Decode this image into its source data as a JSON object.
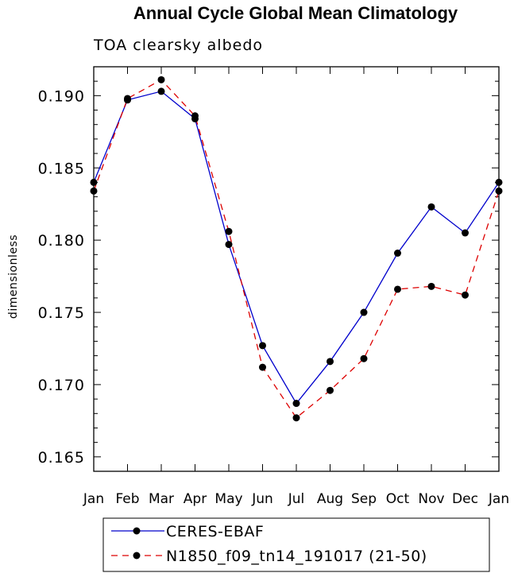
{
  "chart_data": {
    "type": "line",
    "title": "Annual Cycle Global Mean Climatology",
    "subtitle": "TOA clearsky albedo",
    "xlabel": "",
    "ylabel": "dimensionless",
    "categories": [
      "Jan",
      "Feb",
      "Mar",
      "Apr",
      "May",
      "Jun",
      "Jul",
      "Aug",
      "Sep",
      "Oct",
      "Nov",
      "Dec",
      "Jan"
    ],
    "ylim": [
      0.164,
      0.192
    ],
    "yticks": [
      "0.165",
      "0.170",
      "0.175",
      "0.180",
      "0.185",
      "0.190"
    ],
    "ytick_values": [
      0.165,
      0.17,
      0.175,
      0.18,
      0.185,
      0.19
    ],
    "grid": false,
    "legend_position": "bottom-left",
    "series": [
      {
        "name": "CERES-EBAF",
        "color": "#0000cc",
        "dash": "solid",
        "values": [
          0.184,
          0.1897,
          0.1903,
          0.1884,
          0.1797,
          0.1727,
          0.1687,
          0.1716,
          0.175,
          0.1791,
          0.1823,
          0.1805,
          0.184
        ]
      },
      {
        "name": "N1850_f09_tn14_191017 (21-50)",
        "color": "#dd0000",
        "dash": "dashed",
        "values": [
          0.1834,
          0.1898,
          0.1911,
          0.1886,
          0.1806,
          0.1712,
          0.1677,
          0.1696,
          0.1718,
          0.1766,
          0.1768,
          0.1762,
          0.1834
        ]
      }
    ]
  }
}
